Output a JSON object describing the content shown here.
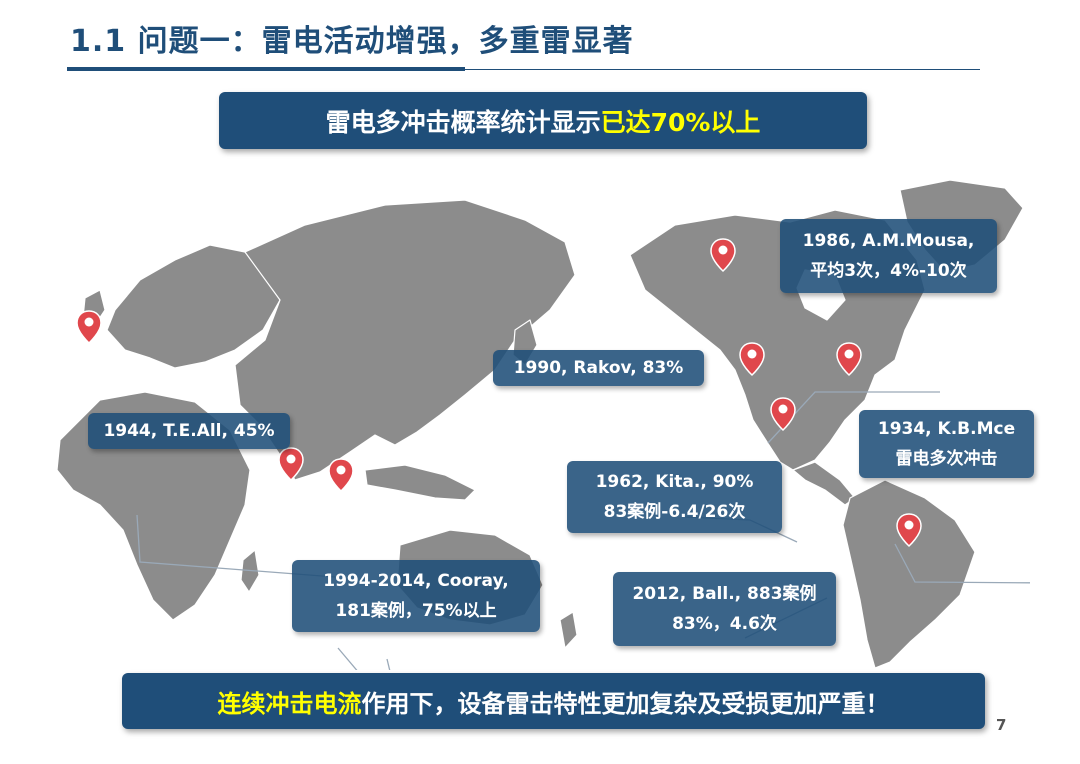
{
  "slide": {
    "title": "1.1 问题一：雷电活动增强，多重雷显著",
    "page_number": "7"
  },
  "banner_top": {
    "text_normal": "雷电多冲击概率统计显示",
    "text_highlight": "已达70%以上"
  },
  "banner_bottom": {
    "text_highlight": "连续冲击电流",
    "text_normal": "作用下，设备雷击特性更加复杂及受损更加严重！"
  },
  "colors": {
    "primary": "#1f4e79",
    "highlight": "#ffff00",
    "map_land": "#8c8c8c",
    "pin": "#e0474c"
  },
  "callouts": [
    {
      "id": "europe",
      "line1": "1944, T.E.All, 45%",
      "line2": ""
    },
    {
      "id": "asia",
      "line1": "1994-2014, Cooray,",
      "line2": "181案例，75%以上"
    },
    {
      "id": "canada",
      "line1": "1986, A.M.Mousa,",
      "line2": "平均3次，4%-10次"
    },
    {
      "id": "west-us",
      "line1": "1990, Rakov, 83%",
      "line2": ""
    },
    {
      "id": "east-us",
      "line1": "1934, K.B.Mce",
      "line2": "雷电多次冲击"
    },
    {
      "id": "south-us",
      "line1": "1962, Kita., 90%",
      "line2": "83案例-6.4/26次"
    },
    {
      "id": "brazil",
      "line1": "2012, Ball., 883案例",
      "line2": "83%，4.6次"
    }
  ]
}
